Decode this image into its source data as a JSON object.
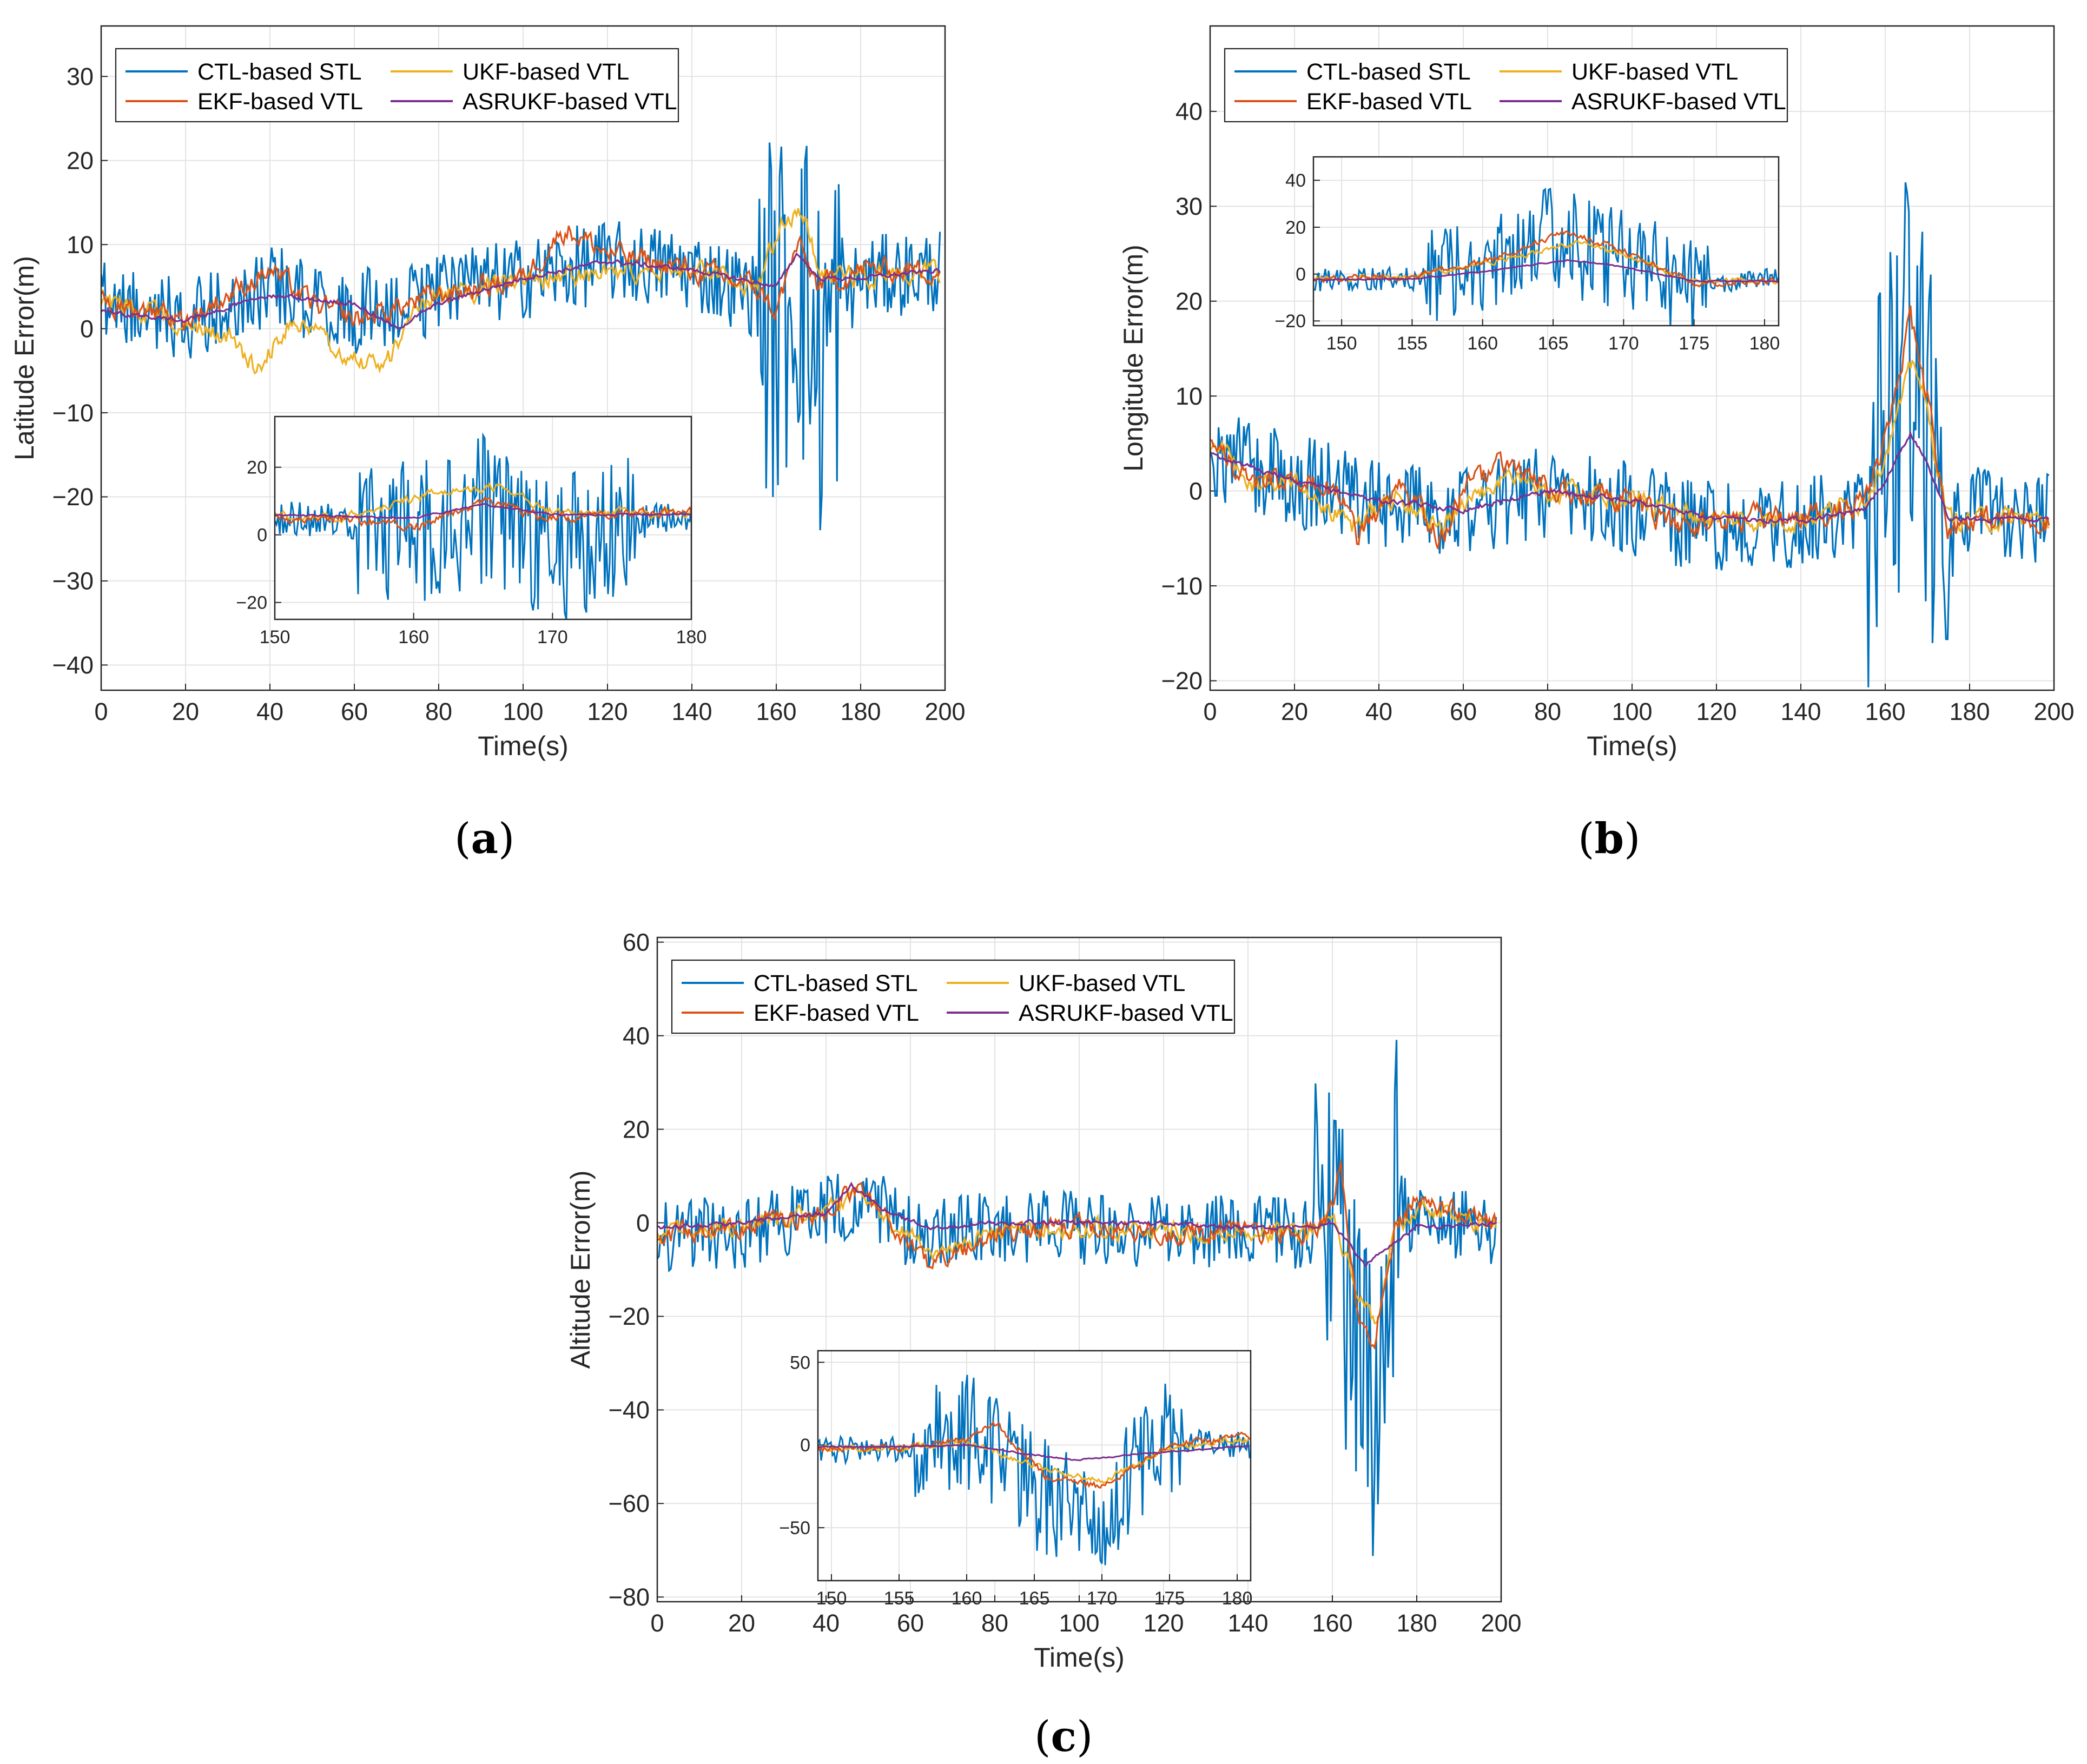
{
  "figure": {
    "legend_entries": [
      "CTL-based STL",
      "EKF-based VTL",
      "UKF-based VTL",
      "ASRUKF-based VTL"
    ],
    "colors": {
      "CTL-based STL": "#0072BD",
      "EKF-based VTL": "#D95319",
      "UKF-based VTL": "#EDB120",
      "ASRUKF-based VTL": "#7E2F8E"
    }
  },
  "chart_data": [
    {
      "id": "a",
      "panel_label": "a",
      "type": "line",
      "xlabel": "Time(s)",
      "ylabel": "Latitude Error(m)",
      "xlim": [
        0,
        200
      ],
      "ylim": [
        -43,
        36
      ],
      "xticks": [
        0,
        20,
        40,
        60,
        80,
        100,
        120,
        140,
        160,
        180,
        200
      ],
      "yticks": [
        -40,
        -30,
        -20,
        -10,
        0,
        10,
        20,
        30
      ],
      "grid": true,
      "legend_position": "top-left",
      "series_trends": {
        "CTL-based STL": {
          "t": [
            0,
            20,
            40,
            60,
            80,
            100,
            120,
            140,
            155,
            160,
            165,
            170,
            175,
            180,
            200
          ],
          "v": [
            3,
            1,
            5,
            2,
            4,
            6,
            8,
            7,
            4,
            0,
            8,
            -5,
            3,
            6,
            7
          ],
          "noise": 5
        },
        "EKF-based VTL": {
          "t": [
            0,
            20,
            40,
            50,
            60,
            80,
            100,
            110,
            120,
            140,
            155,
            160,
            165,
            170,
            180,
            200
          ],
          "v": [
            3,
            1,
            7,
            3,
            1,
            4,
            6,
            12,
            9,
            7,
            5,
            2,
            10,
            5,
            7,
            7
          ],
          "noise": 1.6
        },
        "UKF-based VTL": {
          "t": [
            0,
            20,
            30,
            37,
            45,
            55,
            62,
            67,
            75,
            100,
            140,
            155,
            162,
            166,
            170,
            180,
            200
          ],
          "v": [
            3,
            1,
            -1,
            -5,
            1,
            -2,
            -4,
            -5,
            3,
            6,
            7,
            5,
            13,
            14,
            7,
            6,
            7
          ],
          "noise": 1.4
        },
        "ASRUKF-based VTL": {
          "t": [
            0,
            20,
            40,
            60,
            70,
            80,
            100,
            120,
            140,
            160,
            165,
            170,
            180,
            200
          ],
          "v": [
            2,
            1,
            4,
            3,
            0,
            3,
            6,
            8,
            7,
            5,
            9,
            6,
            6,
            7
          ],
          "noise": 0.3
        }
      },
      "inset": {
        "xlim": [
          150,
          180
        ],
        "ylim": [
          -25,
          35
        ],
        "xticks": [
          150,
          160,
          170,
          180
        ],
        "yticks": [
          -20,
          0,
          20
        ]
      }
    },
    {
      "id": "b",
      "panel_label": "b",
      "type": "line",
      "xlabel": "Time(s)",
      "ylabel": "Longitude Error(m)",
      "xlim": [
        0,
        200
      ],
      "ylim": [
        -21,
        49
      ],
      "xticks": [
        0,
        20,
        40,
        60,
        80,
        100,
        120,
        140,
        160,
        180,
        200
      ],
      "yticks": [
        -20,
        -10,
        0,
        10,
        20,
        30,
        40
      ],
      "grid": true,
      "legend_position": "top-left",
      "series_trends": {
        "CTL-based STL": {
          "t": [
            0,
            20,
            40,
            60,
            80,
            100,
            120,
            140,
            155,
            160,
            165,
            170,
            175,
            180,
            200
          ],
          "v": [
            4,
            1,
            -1,
            -2,
            0,
            -2,
            -4,
            -3,
            -2,
            5,
            15,
            5,
            -5,
            -2,
            -3
          ],
          "noise": 5
        },
        "EKF-based VTL": {
          "t": [
            0,
            10,
            20,
            30,
            35,
            45,
            55,
            60,
            70,
            80,
            100,
            110,
            120,
            140,
            155,
            160,
            166,
            170,
            175,
            180,
            200
          ],
          "v": [
            5,
            1,
            1,
            0,
            -5,
            0,
            -5,
            0,
            3,
            0,
            -1,
            -4,
            -3,
            -3,
            -1,
            5,
            18,
            10,
            -4,
            -3,
            -3
          ],
          "noise": 1.5
        },
        "UKF-based VTL": {
          "t": [
            0,
            10,
            20,
            35,
            45,
            55,
            70,
            80,
            100,
            120,
            140,
            155,
            160,
            167,
            170,
            175,
            180,
            200
          ],
          "v": [
            5,
            1,
            1,
            -4,
            0,
            -4,
            2,
            0,
            -1,
            -3,
            -3,
            -1,
            4,
            14,
            8,
            -3,
            -3,
            -3
          ],
          "noise": 1.3
        },
        "ASRUKF-based VTL": {
          "t": [
            0,
            20,
            40,
            60,
            80,
            100,
            120,
            140,
            155,
            160,
            166,
            170,
            175,
            180,
            200
          ],
          "v": [
            4,
            1,
            -1,
            -2,
            0,
            -1,
            -3,
            -3,
            -2,
            1,
            6,
            3,
            -3,
            -3,
            -3
          ],
          "noise": 0.3
        }
      },
      "inset": {
        "xlim": [
          148,
          181
        ],
        "ylim": [
          -22,
          50
        ],
        "xticks": [
          150,
          155,
          160,
          165,
          170,
          175,
          180
        ],
        "yticks": [
          -20,
          0,
          20,
          40
        ]
      }
    },
    {
      "id": "c",
      "panel_label": "c",
      "type": "line",
      "xlabel": "Time(s)",
      "ylabel": "Altitude Error(m)",
      "xlim": [
        0,
        200
      ],
      "ylim": [
        -81,
        61
      ],
      "xticks": [
        0,
        20,
        40,
        60,
        80,
        100,
        120,
        140,
        160,
        180,
        200
      ],
      "yticks": [
        -80,
        -60,
        -40,
        -20,
        0,
        20,
        40,
        60
      ],
      "grid": true,
      "legend_position": "top-left",
      "series_trends": {
        "CTL-based STL": {
          "t": [
            0,
            20,
            40,
            50,
            60,
            80,
            100,
            120,
            140,
            155,
            160,
            165,
            170,
            175,
            180,
            200
          ],
          "v": [
            -3,
            -2,
            3,
            5,
            -2,
            -1,
            -1,
            -2,
            -2,
            -3,
            10,
            -30,
            -40,
            5,
            0,
            -2
          ],
          "noise": 8
        },
        "EKF-based VTL": {
          "t": [
            0,
            20,
            40,
            47,
            55,
            60,
            65,
            80,
            100,
            120,
            140,
            155,
            160,
            162,
            166,
            170,
            175,
            180,
            200
          ],
          "v": [
            -3,
            -1,
            2,
            8,
            0,
            -5,
            -10,
            -2,
            -1,
            -2,
            -2,
            -2,
            3,
            14,
            -20,
            -25,
            0,
            5,
            -1
          ],
          "noise": 2.5
        },
        "UKF-based VTL": {
          "t": [
            0,
            20,
            40,
            47,
            55,
            65,
            80,
            100,
            120,
            140,
            155,
            160,
            166,
            170,
            175,
            180,
            200
          ],
          "v": [
            -3,
            -1,
            2,
            6,
            0,
            -6,
            -2,
            -1,
            -2,
            -2,
            -2,
            2,
            -15,
            -22,
            -2,
            3,
            -1
          ],
          "noise": 2.2
        },
        "ASRUKF-based VTL": {
          "t": [
            0,
            20,
            40,
            46,
            55,
            65,
            80,
            100,
            120,
            140,
            155,
            160,
            165,
            168,
            172,
            180,
            200
          ],
          "v": [
            -1,
            0,
            2,
            8,
            2,
            -1,
            0,
            0,
            0,
            -1,
            -1,
            0,
            -6,
            -9,
            -6,
            -1,
            0
          ],
          "noise": 0.5
        }
      },
      "inset": {
        "xlim": [
          149,
          181
        ],
        "ylim": [
          -82,
          57
        ],
        "xticks": [
          150,
          155,
          160,
          165,
          170,
          175,
          180
        ],
        "yticks": [
          -50,
          0,
          50
        ]
      }
    }
  ]
}
